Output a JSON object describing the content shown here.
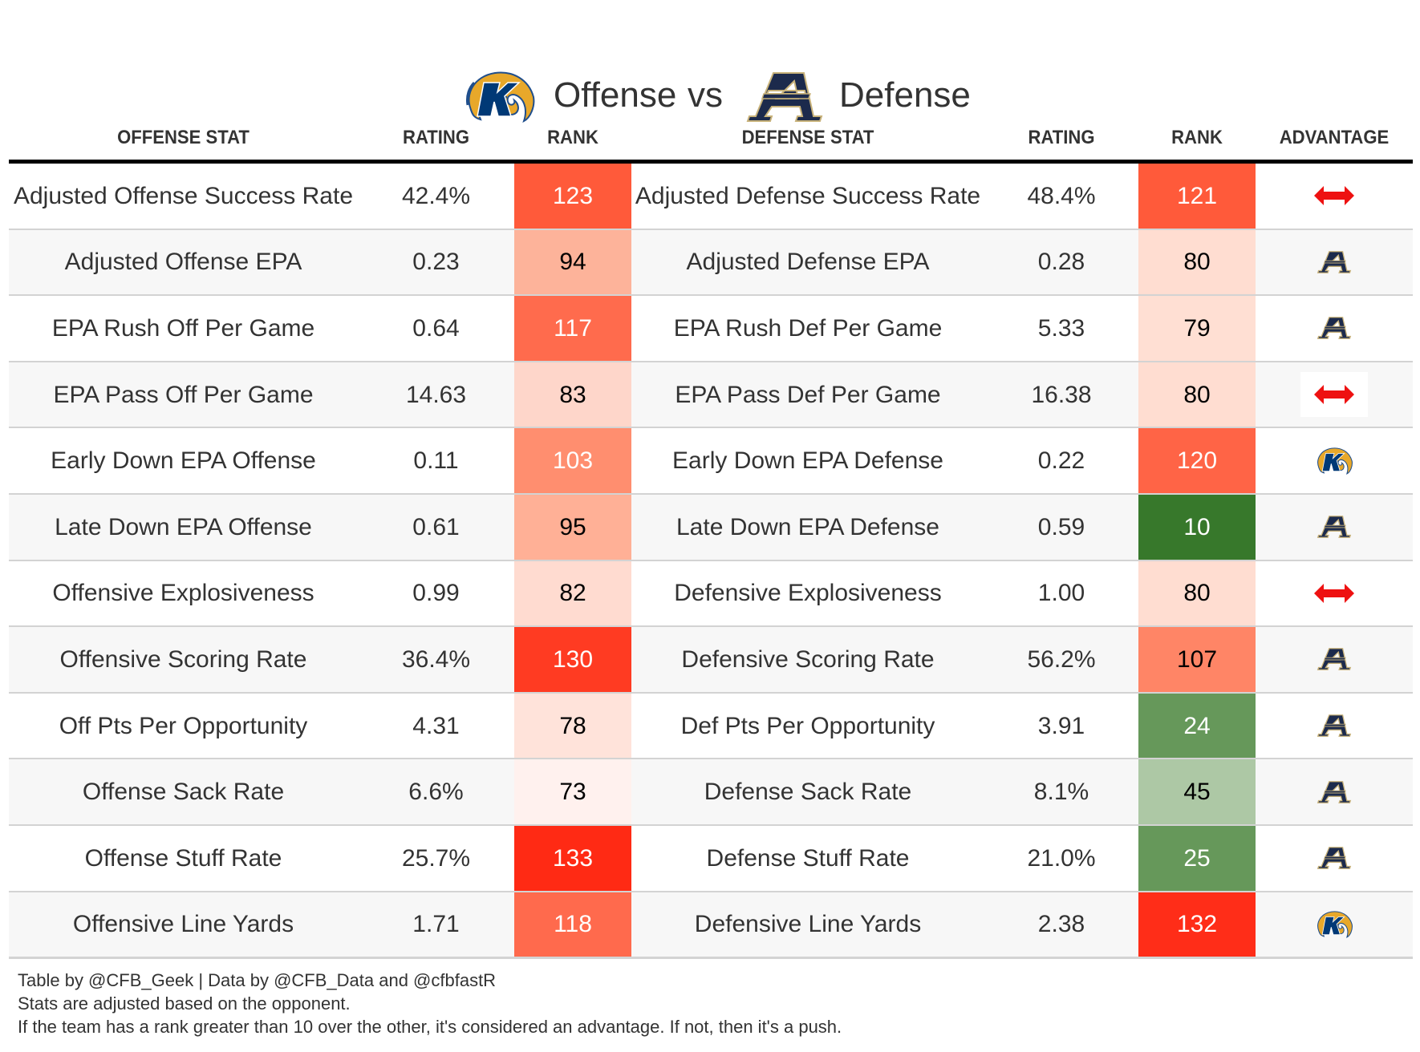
{
  "title": {
    "offense_team_logo": "kent-state-golden-flash-logo",
    "offense_label": "Offense",
    "vs_label": "vs",
    "defense_team_logo": "akron-a-logo",
    "defense_label": "Defense"
  },
  "headers": {
    "offense_stat": "OFFENSE STAT",
    "offense_rating": "RATING",
    "offense_rank": "RANK",
    "defense_stat": "DEFENSE STAT",
    "defense_rating": "RATING",
    "defense_rank": "RANK",
    "advantage": "ADVANTAGE"
  },
  "colors": {
    "akron_navy": "#1c2a4c",
    "akron_gold": "#c8b27a",
    "kent_blue": "#003976",
    "kent_gold": "#e8a82a",
    "push_red": "#ee1111"
  },
  "rows": [
    {
      "offense_stat": "Adjusted Offense Success Rate",
      "offense_rating": "42.4%",
      "offense_rank": "123",
      "offense_rank_color": "#ff5a3a",
      "offense_rank_text": "light",
      "defense_stat": "Adjusted Defense Success Rate",
      "defense_rating": "48.4%",
      "defense_rank": "121",
      "defense_rank_color": "#ff5a3a",
      "defense_rank_text": "light",
      "advantage": "push"
    },
    {
      "offense_stat": "Adjusted Offense EPA",
      "offense_rating": "0.23",
      "offense_rank": "94",
      "offense_rank_color": "#fdb39a",
      "offense_rank_text": "dark",
      "defense_stat": "Adjusted Defense EPA",
      "defense_rating": "0.28",
      "defense_rank": "80",
      "defense_rank_color": "#ffddd1",
      "defense_rank_text": "dark",
      "advantage": "defense"
    },
    {
      "offense_stat": "EPA Rush Off Per Game",
      "offense_rating": "0.64",
      "offense_rank": "117",
      "offense_rank_color": "#ff6b4d",
      "offense_rank_text": "light",
      "defense_stat": "EPA Rush Def Per Game",
      "defense_rating": "5.33",
      "defense_rank": "79",
      "defense_rank_color": "#ffdfd3",
      "defense_rank_text": "dark",
      "advantage": "defense"
    },
    {
      "offense_stat": "EPA Pass Off Per Game",
      "offense_rating": "14.63",
      "offense_rank": "83",
      "offense_rank_color": "#fed6ca",
      "offense_rank_text": "dark",
      "defense_stat": "EPA Pass Def Per Game",
      "defense_rating": "16.38",
      "defense_rank": "80",
      "defense_rank_color": "#ffddd1",
      "defense_rank_text": "dark",
      "advantage": "push-boxed"
    },
    {
      "offense_stat": "Early Down EPA Offense",
      "offense_rating": "0.11",
      "offense_rank": "103",
      "offense_rank_color": "#ff8e6f",
      "offense_rank_text": "light",
      "defense_stat": "Early Down EPA Defense",
      "defense_rating": "0.22",
      "defense_rank": "120",
      "defense_rank_color": "#ff6446",
      "defense_rank_text": "light",
      "advantage": "offense"
    },
    {
      "offense_stat": "Late Down EPA Offense",
      "offense_rating": "0.61",
      "offense_rank": "95",
      "offense_rank_color": "#ffb096",
      "offense_rank_text": "dark",
      "defense_stat": "Late Down EPA Defense",
      "defense_rating": "0.59",
      "defense_rank": "10",
      "defense_rank_color": "#37782b",
      "defense_rank_text": "light",
      "advantage": "defense"
    },
    {
      "offense_stat": "Offensive Explosiveness",
      "offense_rating": "0.99",
      "offense_rank": "82",
      "offense_rank_color": "#ffdbd0",
      "offense_rank_text": "dark",
      "defense_stat": "Defensive Explosiveness",
      "defense_rating": "1.00",
      "defense_rank": "80",
      "defense_rank_color": "#ffddd1",
      "defense_rank_text": "dark",
      "advantage": "push"
    },
    {
      "offense_stat": "Offensive Scoring Rate",
      "offense_rating": "36.4%",
      "offense_rank": "130",
      "offense_rank_color": "#ff3b22",
      "offense_rank_text": "light",
      "defense_stat": "Defensive Scoring Rate",
      "defense_rating": "56.2%",
      "defense_rank": "107",
      "defense_rank_color": "#ff8566",
      "defense_rank_text": "dark",
      "advantage": "defense"
    },
    {
      "offense_stat": "Off Pts Per Opportunity",
      "offense_rating": "4.31",
      "offense_rank": "78",
      "offense_rank_color": "#ffe3da",
      "offense_rank_text": "dark",
      "defense_stat": "Def Pts Per Opportunity",
      "defense_rating": "3.91",
      "defense_rank": "24",
      "defense_rank_color": "#66985a",
      "defense_rank_text": "light",
      "advantage": "defense"
    },
    {
      "offense_stat": "Offense Sack Rate",
      "offense_rating": "6.6%",
      "offense_rank": "73",
      "offense_rank_color": "#fff1ee",
      "offense_rank_text": "dark",
      "defense_stat": "Defense Sack Rate",
      "defense_rating": "8.1%",
      "defense_rank": "45",
      "defense_rank_color": "#adc8a5",
      "defense_rank_text": "dark",
      "advantage": "defense"
    },
    {
      "offense_stat": "Offense Stuff Rate",
      "offense_rating": "25.7%",
      "offense_rank": "133",
      "offense_rank_color": "#ff2a14",
      "offense_rank_text": "light",
      "defense_stat": "Defense Stuff Rate",
      "defense_rating": "21.0%",
      "defense_rank": "25",
      "defense_rank_color": "#66985a",
      "defense_rank_text": "light",
      "advantage": "defense"
    },
    {
      "offense_stat": "Offensive Line Yards",
      "offense_rating": "1.71",
      "offense_rank": "118",
      "offense_rank_color": "#ff6a4d",
      "offense_rank_text": "light",
      "defense_stat": "Defensive Line Yards",
      "defense_rating": "2.38",
      "defense_rank": "132",
      "defense_rank_color": "#ff2d18",
      "defense_rank_text": "light",
      "advantage": "offense"
    }
  ],
  "footer": {
    "credit": "Table by @CFB_Geek | Data by @CFB_Data and @cfbfastR",
    "note_adjusted": "Stats are adjusted based on the opponent.",
    "note_advantage": "If the team has a rank greater than 10 over the other, it's considered an advantage. If not, then it's a push."
  }
}
